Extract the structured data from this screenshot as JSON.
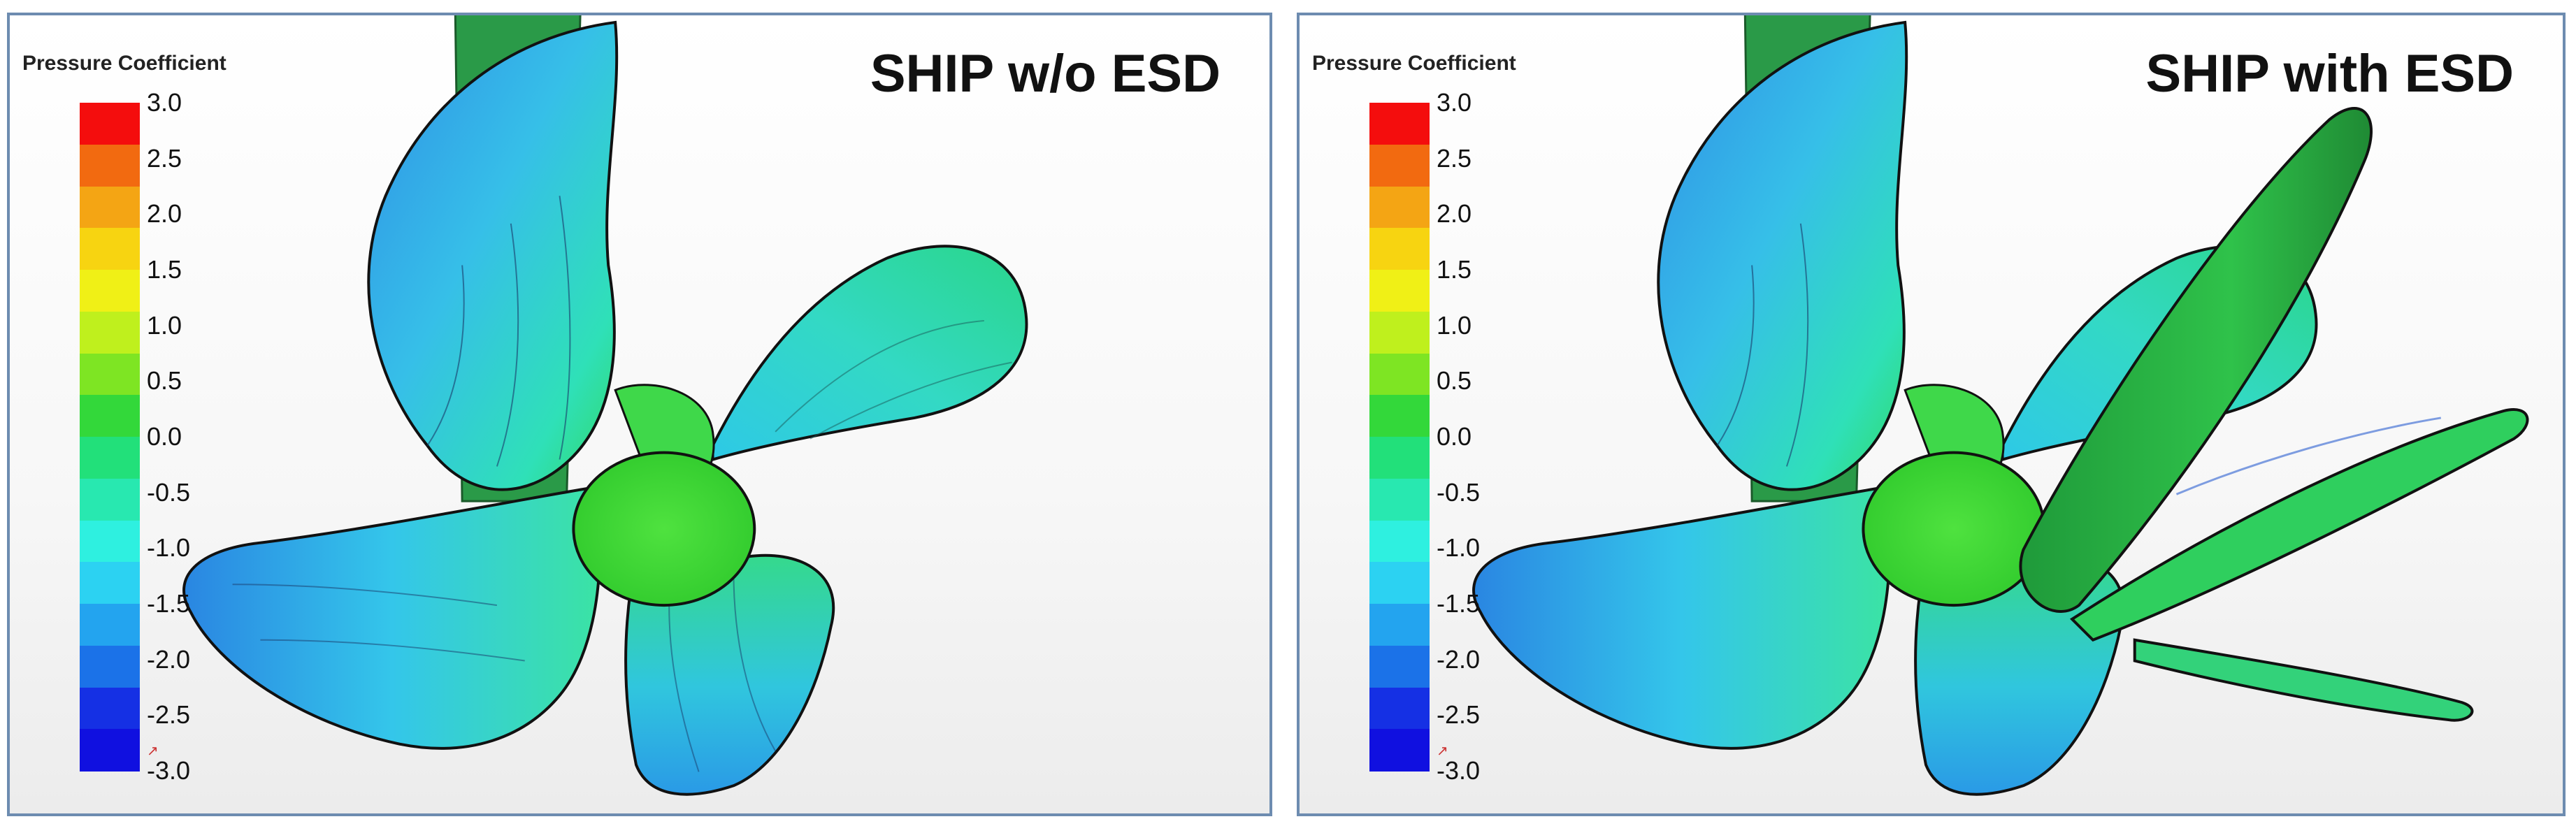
{
  "panels": [
    {
      "title": "SHIP w/o ESD",
      "legend_title": "Pressure Coefficient",
      "ticks": [
        "3.0",
        "2.5",
        "2.0",
        "1.5",
        "1.0",
        "0.5",
        "0.0",
        "-0.5",
        "-1.0",
        "-1.5",
        "-2.0",
        "-2.5",
        "-3.0"
      ]
    },
    {
      "title": "SHIP with ESD",
      "legend_title": "Pressure Coefficient",
      "ticks": [
        "3.0",
        "2.5",
        "2.0",
        "1.5",
        "1.0",
        "0.5",
        "0.0",
        "-0.5",
        "-1.0",
        "-1.5",
        "-2.0",
        "-2.5",
        "-3.0"
      ]
    }
  ],
  "colorbar_colors": [
    "#f40d0d",
    "#f26a10",
    "#f4a514",
    "#f7d411",
    "#f0f016",
    "#bff01d",
    "#7ee523",
    "#33d83a",
    "#22e07a",
    "#28e8b0",
    "#2ef0e0",
    "#2cd2f2",
    "#23a4ef",
    "#1b72e8",
    "#1530e4",
    "#1010e0"
  ]
}
